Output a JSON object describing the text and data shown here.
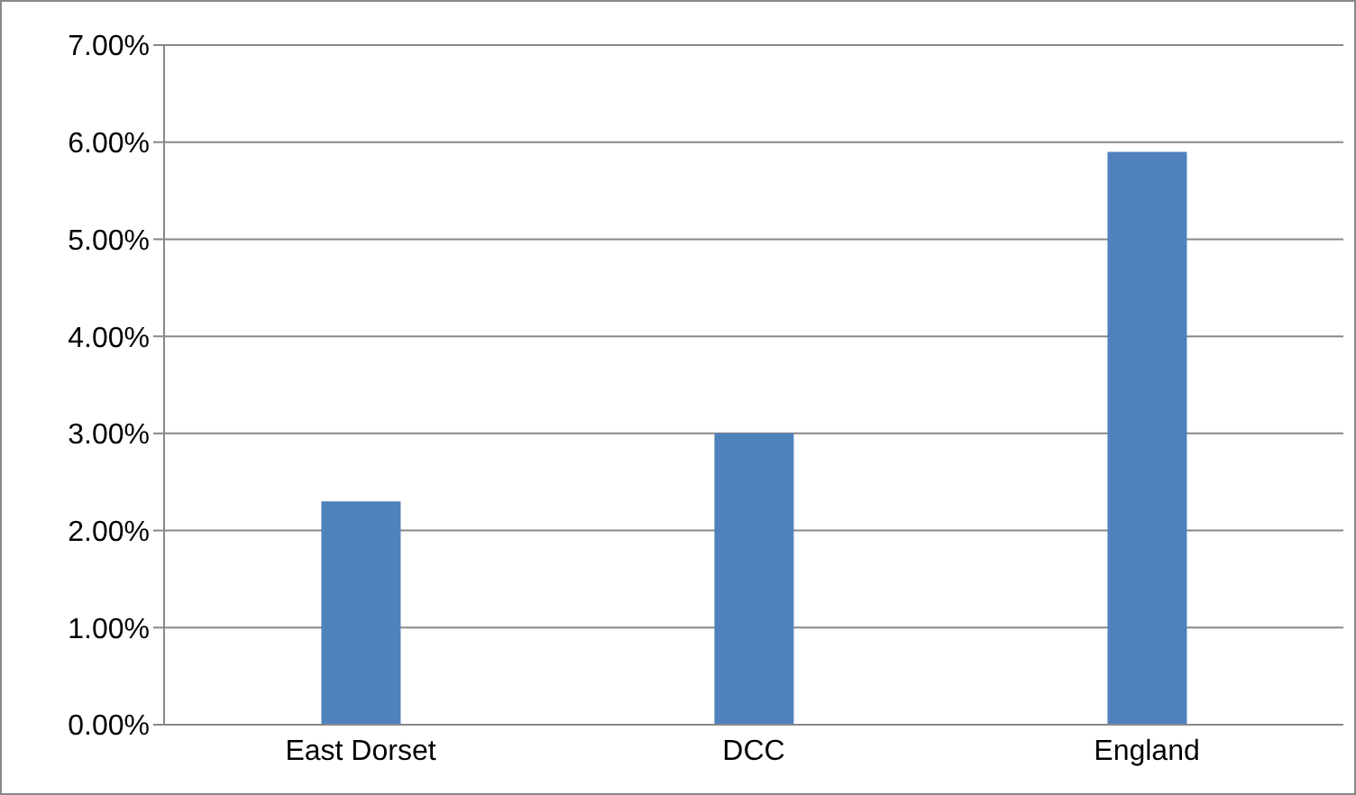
{
  "chart_data": {
    "type": "bar",
    "categories": [
      "East Dorset",
      "DCC",
      "England"
    ],
    "values": [
      2.3,
      3.0,
      5.9
    ],
    "color": "#4f81bd",
    "ylim": [
      0,
      7
    ],
    "yticks": [
      {
        "value": 0,
        "label": "0.00%"
      },
      {
        "value": 1,
        "label": "1.00%"
      },
      {
        "value": 2,
        "label": "2.00%"
      },
      {
        "value": 3,
        "label": "3.00%"
      },
      {
        "value": 4,
        "label": "4.00%"
      },
      {
        "value": 5,
        "label": "5.00%"
      },
      {
        "value": 6,
        "label": "6.00%"
      },
      {
        "value": 7,
        "label": "7.00%"
      }
    ],
    "grid": "y",
    "legend": false
  }
}
